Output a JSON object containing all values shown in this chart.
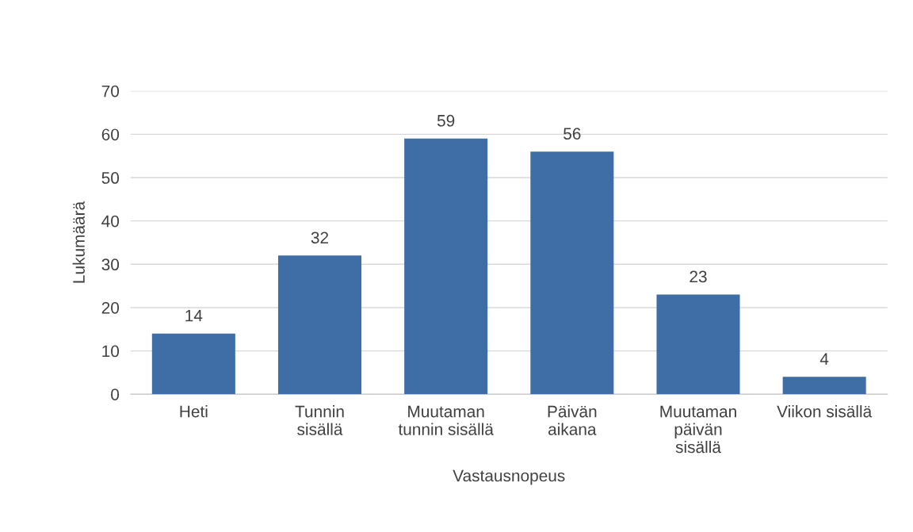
{
  "chart_data": {
    "type": "bar",
    "categories": [
      "Heti",
      "Tunnin\nsisällä",
      "Muutaman\ntunnin sisällä",
      "Päivän\naikana",
      "Muutaman\npäivän\nsisällä",
      "Viikon sisällä"
    ],
    "values": [
      14,
      32,
      59,
      56,
      23,
      4
    ],
    "color": "#3f6ea7",
    "xlabel": "Vastausnopeus",
    "ylabel": "Lukumäärä",
    "ylim": [
      0,
      70
    ],
    "yticks": [
      0,
      10,
      20,
      30,
      40,
      50,
      60,
      70
    ],
    "grid": "y",
    "data_labels": true
  }
}
